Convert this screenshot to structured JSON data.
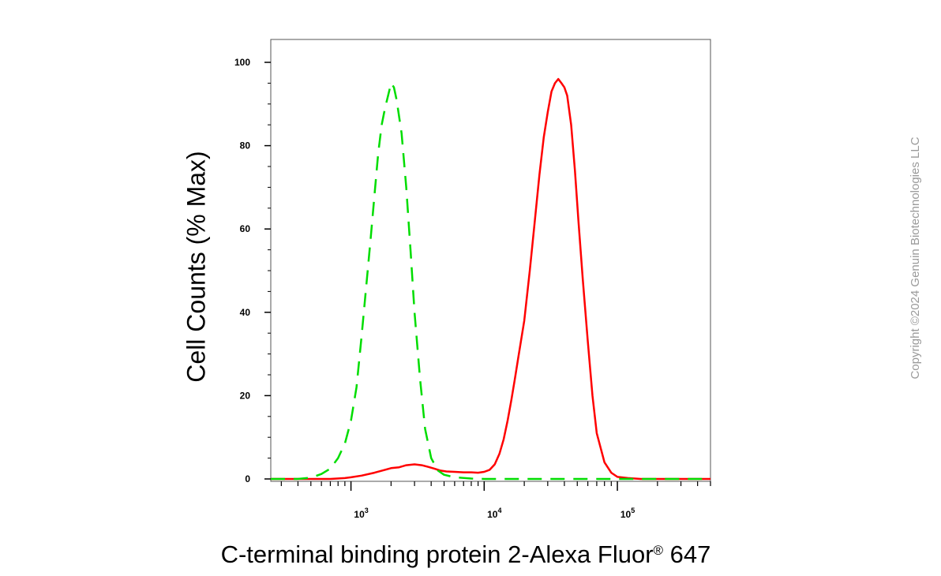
{
  "chart_data": {
    "type": "line",
    "xscale": "log",
    "xlabel": "C-terminal binding protein 2-Alexa Fluor",
    "xlabel_sup": "®",
    "xlabel_end": " 647",
    "ylabel": "Cell Counts (% Max)",
    "xlim": [
      250,
      500000
    ],
    "ylim": [
      0,
      100
    ],
    "yticks": [
      0,
      20,
      40,
      60,
      80,
      100
    ],
    "xticks": [
      {
        "value": 1000,
        "base": "10",
        "exp": "3"
      },
      {
        "value": 10000,
        "base": "10",
        "exp": "4"
      },
      {
        "value": 100000,
        "base": "10",
        "exp": "5"
      }
    ],
    "grid": false,
    "legend": "none",
    "series": [
      {
        "color": "#00dd00",
        "style": "dashed",
        "x": [
          250,
          400,
          500,
          600,
          700,
          800,
          900,
          1000,
          1100,
          1200,
          1300,
          1400,
          1500,
          1600,
          1700,
          1800,
          1900,
          2000,
          2100,
          2200,
          2400,
          2600,
          2800,
          3000,
          3300,
          3600,
          4000,
          4500,
          5000,
          6000,
          8000,
          10000,
          20000,
          50000,
          100000,
          200000,
          500000
        ],
        "y": [
          0,
          0,
          0.3,
          1.2,
          2.5,
          5,
          8.5,
          14,
          22,
          34,
          46,
          57,
          68,
          78,
          85,
          89,
          92,
          95,
          94,
          91,
          83,
          70,
          55,
          40,
          24,
          12,
          5,
          2,
          1,
          0.4,
          0.1,
          0,
          0,
          0,
          0,
          0,
          0
        ]
      },
      {
        "color": "#ff0000",
        "style": "solid",
        "x": [
          250,
          500,
          700,
          900,
          1000,
          1200,
          1500,
          1800,
          2000,
          2300,
          2600,
          3000,
          3400,
          3800,
          4200,
          4700,
          5200,
          6000,
          7000,
          8000,
          9000,
          10000,
          11000,
          12000,
          13000,
          14000,
          15000,
          16000,
          17000,
          18000,
          20000,
          22000,
          24000,
          26000,
          28000,
          30000,
          32000,
          34000,
          36000,
          38000,
          40000,
          42000,
          45000,
          48000,
          51000,
          55000,
          60000,
          65000,
          70000,
          80000,
          90000,
          100000,
          120000,
          150000,
          200000,
          500000
        ],
        "y": [
          0,
          0,
          0,
          0.2,
          0.4,
          0.8,
          1.5,
          2.2,
          2.6,
          2.8,
          3.3,
          3.5,
          3.3,
          2.9,
          2.5,
          2,
          1.8,
          1.7,
          1.6,
          1.6,
          1.5,
          1.7,
          2.2,
          3.5,
          6,
          9.5,
          14,
          19,
          24,
          29,
          38,
          50,
          62,
          73,
          82,
          88,
          93,
          95,
          96,
          95,
          94,
          92,
          85,
          74,
          62,
          48,
          33,
          20,
          11,
          4,
          1.5,
          0.5,
          0.2,
          0,
          0,
          0
        ]
      }
    ]
  },
  "watermark": "Copyright ©2024 Genuin Biotechnologies LLC"
}
